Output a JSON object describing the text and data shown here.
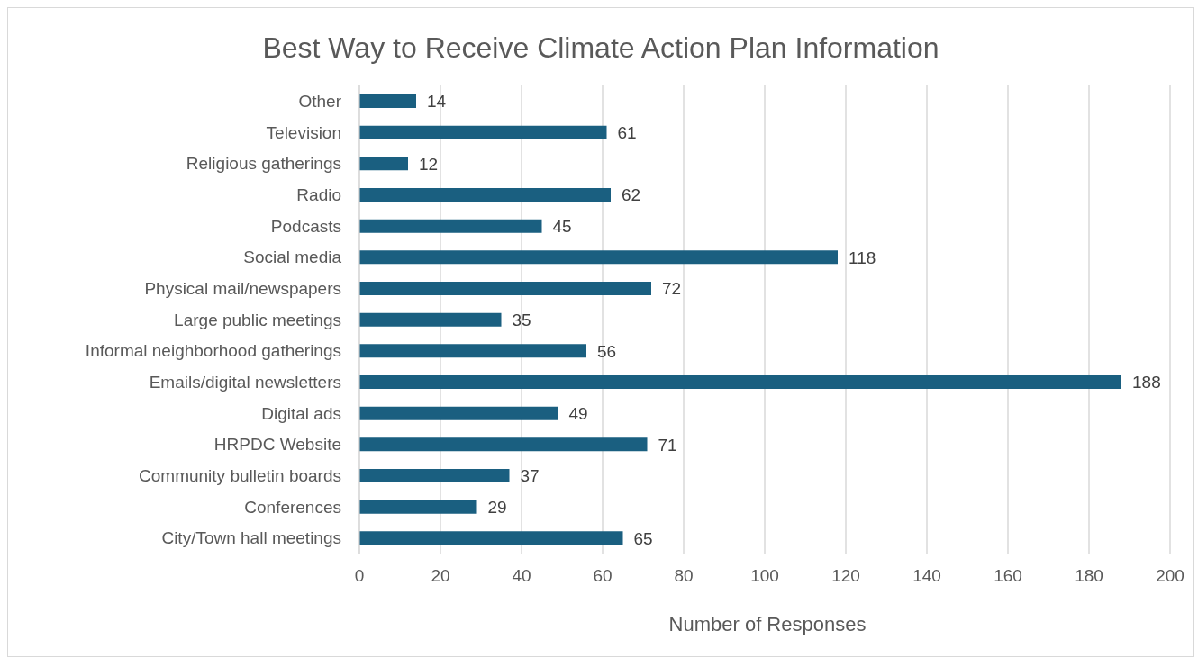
{
  "chart_data": {
    "type": "bar",
    "orientation": "horizontal",
    "title": "Best Way to Receive Climate Action Plan Information",
    "xlabel": "Number of Responses",
    "categories": [
      "Other",
      "Television",
      "Religious gatherings",
      "Radio",
      "Podcasts",
      "Social media",
      "Physical mail/newspapers",
      "Large public meetings",
      "Informal neighborhood gatherings",
      "Emails/digital newsletters",
      "Digital ads",
      "HRPDC Website",
      "Community bulletin boards",
      "Conferences",
      "City/Town hall meetings"
    ],
    "values": [
      14,
      61,
      12,
      62,
      45,
      118,
      72,
      35,
      56,
      188,
      49,
      71,
      37,
      29,
      65
    ],
    "color": "#1a5f80",
    "xlim": [
      0,
      200
    ],
    "xticks": [
      0,
      20,
      40,
      60,
      80,
      100,
      120,
      140,
      160,
      180,
      200
    ],
    "grid": "x",
    "data_labels": true
  }
}
